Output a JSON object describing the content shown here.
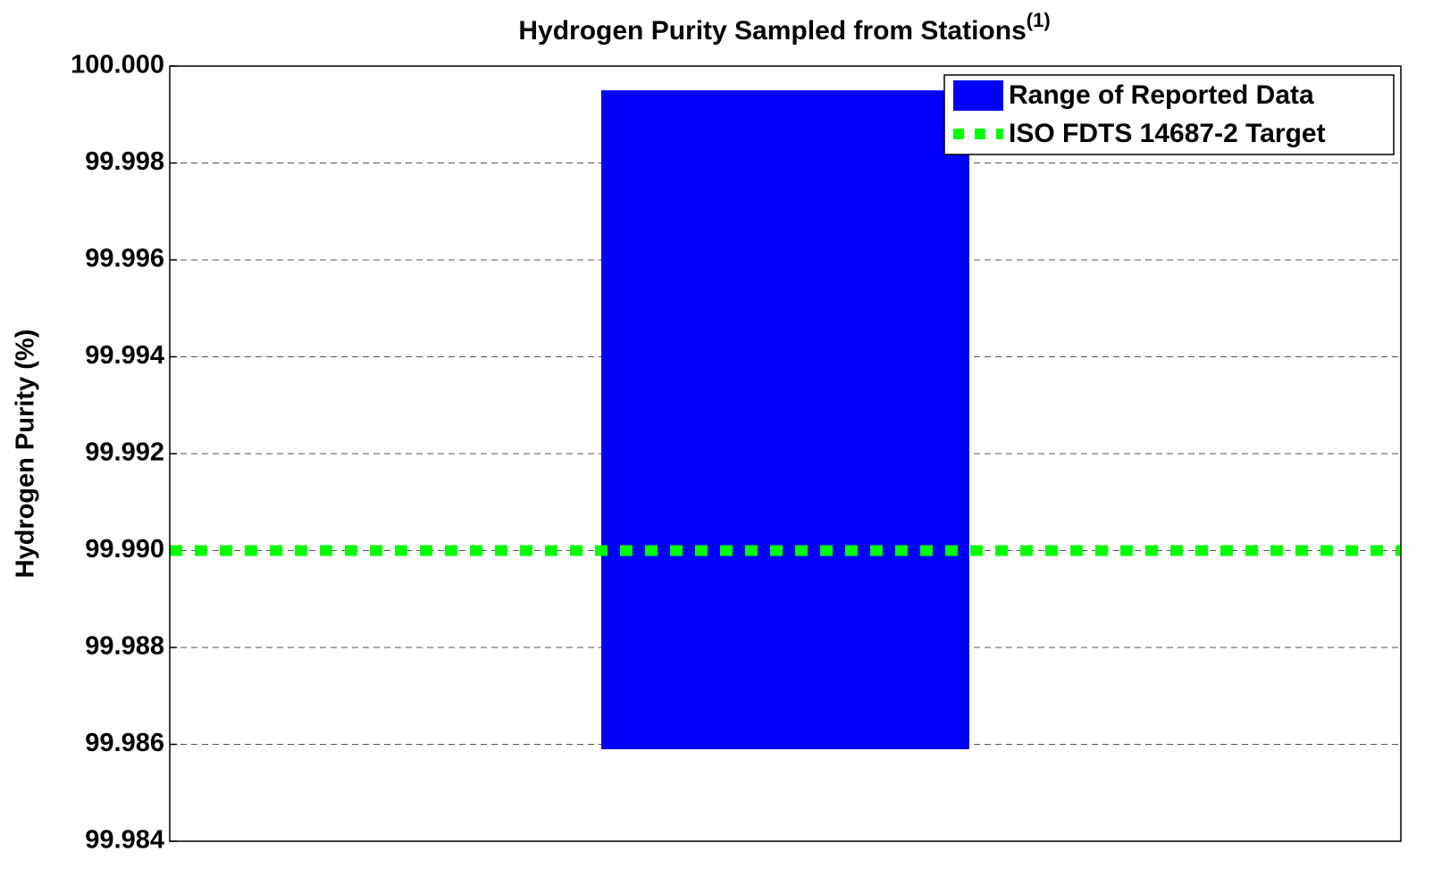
{
  "chart_data": {
    "type": "range",
    "title": "Hydrogen Purity Sampled from Stations",
    "title_note": "(1)",
    "ylabel": "Hydrogen Purity (%)",
    "series": [
      {
        "name": "Range of Reported Data",
        "color": "#0000ff",
        "low": 99.9859,
        "high": 99.9995
      }
    ],
    "target": {
      "name": "ISO FDTS 14687-2 Target",
      "color": "#00ff00",
      "value": 99.99
    },
    "ylim": [
      99.984,
      100.0
    ],
    "yticks": [
      99.984,
      99.986,
      99.988,
      {
        "value": 99.99,
        "label": "99.990"
      },
      99.992,
      99.994,
      99.996,
      99.998,
      {
        "value": 100.0,
        "label": "100.000"
      }
    ],
    "grid": true,
    "legend": "upper right"
  }
}
